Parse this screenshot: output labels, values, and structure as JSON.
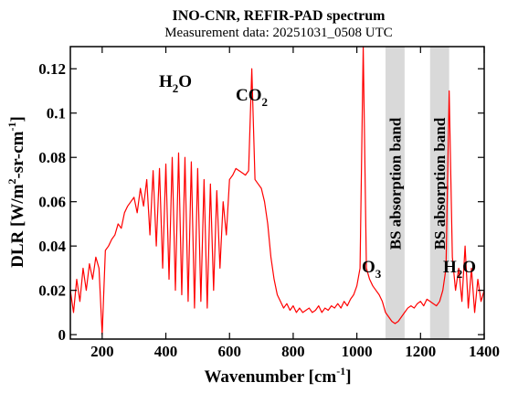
{
  "chart_data": {
    "type": "line",
    "title": "INO-CNR, REFIR-PAD spectrum",
    "subtitle": "Measurement data: 20251031_0508 UTC",
    "x_label": [
      "Wavenumber [cm",
      "-1",
      "]"
    ],
    "y_label": [
      "DLR [W/m",
      "2",
      "-sr-cm",
      "-1",
      "]"
    ],
    "annotations": [
      [
        "H",
        "2",
        "O"
      ],
      [
        "CO",
        "2"
      ],
      [
        "O",
        "3"
      ],
      [
        "H",
        "2",
        "O"
      ]
    ],
    "bands": [
      {
        "label": "BS absorption band",
        "range": [
          1090,
          1150
        ]
      },
      {
        "label": "BS absorption band",
        "range": [
          1230,
          1290
        ]
      }
    ],
    "band_color": "#d9d9d9",
    "xlim": [
      100,
      1400
    ],
    "ylim": [
      -0.002,
      0.13
    ],
    "xticks": [
      200,
      400,
      600,
      800,
      1000,
      1200,
      1400
    ],
    "yticks": [
      0,
      0.02,
      0.04,
      0.06,
      0.08,
      0.1,
      0.12
    ],
    "x": [
      100,
      110,
      120,
      130,
      140,
      150,
      160,
      170,
      180,
      190,
      200,
      210,
      220,
      230,
      240,
      250,
      260,
      270,
      280,
      290,
      300,
      310,
      320,
      330,
      340,
      350,
      360,
      370,
      380,
      390,
      400,
      410,
      420,
      430,
      440,
      450,
      460,
      470,
      480,
      490,
      500,
      510,
      520,
      530,
      540,
      550,
      560,
      570,
      580,
      590,
      600,
      610,
      620,
      630,
      640,
      650,
      660,
      670,
      680,
      690,
      700,
      710,
      720,
      730,
      740,
      750,
      760,
      770,
      780,
      790,
      800,
      810,
      820,
      830,
      840,
      850,
      860,
      870,
      880,
      890,
      900,
      910,
      920,
      930,
      940,
      950,
      960,
      970,
      980,
      990,
      1000,
      1010,
      1020,
      1030,
      1040,
      1050,
      1060,
      1070,
      1080,
      1090,
      1100,
      1110,
      1120,
      1130,
      1140,
      1150,
      1160,
      1170,
      1180,
      1190,
      1200,
      1210,
      1220,
      1230,
      1240,
      1250,
      1260,
      1270,
      1280,
      1290,
      1300,
      1310,
      1320,
      1330,
      1340,
      1350,
      1360,
      1370,
      1380,
      1390,
      1400
    ],
    "series": [
      {
        "name": "DLR",
        "color": "#ff0000",
        "values": [
          0.02,
          0.01,
          0.025,
          0.015,
          0.03,
          0.02,
          0.032,
          0.025,
          0.035,
          0.03,
          0.0,
          0.038,
          0.04,
          0.043,
          0.045,
          0.05,
          0.048,
          0.055,
          0.058,
          0.06,
          0.062,
          0.055,
          0.066,
          0.058,
          0.07,
          0.045,
          0.074,
          0.04,
          0.075,
          0.03,
          0.077,
          0.025,
          0.08,
          0.02,
          0.082,
          0.018,
          0.08,
          0.015,
          0.078,
          0.012,
          0.075,
          0.015,
          0.07,
          0.012,
          0.068,
          0.02,
          0.065,
          0.03,
          0.06,
          0.045,
          0.07,
          0.072,
          0.075,
          0.074,
          0.073,
          0.072,
          0.074,
          0.12,
          0.07,
          0.068,
          0.066,
          0.06,
          0.05,
          0.035,
          0.025,
          0.018,
          0.015,
          0.012,
          0.014,
          0.011,
          0.013,
          0.01,
          0.012,
          0.01,
          0.011,
          0.012,
          0.01,
          0.011,
          0.013,
          0.01,
          0.012,
          0.011,
          0.013,
          0.012,
          0.014,
          0.012,
          0.015,
          0.013,
          0.016,
          0.018,
          0.022,
          0.03,
          0.13,
          0.03,
          0.025,
          0.022,
          0.02,
          0.018,
          0.015,
          0.01,
          0.008,
          0.006,
          0.005,
          0.006,
          0.008,
          0.01,
          0.012,
          0.013,
          0.012,
          0.014,
          0.015,
          0.013,
          0.016,
          0.015,
          0.014,
          0.013,
          0.015,
          0.02,
          0.03,
          0.11,
          0.035,
          0.02,
          0.03,
          0.015,
          0.04,
          0.012,
          0.03,
          0.01,
          0.025,
          0.015,
          0.02
        ]
      }
    ]
  }
}
